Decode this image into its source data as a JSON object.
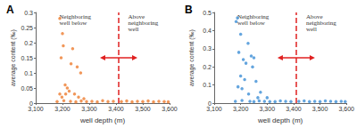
{
  "chart_data": [
    {
      "type": "scatter",
      "title": "A",
      "x_label": "well depth (m)",
      "y_label": "average content (‰)",
      "x": [
        3190,
        3200,
        3203,
        3195,
        3238,
        3232,
        3255,
        3268,
        3210,
        3218,
        3225,
        3212,
        3245,
        3190,
        3198,
        3260,
        3280,
        3180,
        3205,
        3230,
        3250,
        3270,
        3290,
        3310,
        3330,
        3350,
        3370,
        3390,
        3420,
        3440,
        3460,
        3480,
        3500,
        3520,
        3540,
        3560,
        3580,
        3595
      ],
      "values": [
        0.28,
        0.23,
        0.19,
        0.15,
        0.18,
        0.13,
        0.12,
        0.1,
        0.06,
        0.05,
        0.04,
        0.03,
        0.03,
        0.03,
        0.02,
        0.02,
        0.015,
        0.005,
        0.008,
        0.006,
        0.004,
        0.007,
        0.005,
        0.006,
        0.004,
        0.008,
        0.005,
        0.006,
        0.005,
        0.007,
        0.004,
        0.006,
        0.005,
        0.007,
        0.004,
        0.006,
        0.005,
        0.004
      ],
      "color": "#ed7d31",
      "xlim": [
        3100,
        3600
      ],
      "xticks": [
        3100,
        3200,
        3300,
        3400,
        3500,
        3600
      ],
      "ylim": [
        0,
        0.3
      ],
      "yticks": [
        0,
        0.05,
        0.1,
        0.15,
        0.2,
        0.25,
        0.3
      ],
      "vline": 3410,
      "annotations": [
        "Neighboring\nwell below",
        "Above\nneighboring\nwell"
      ],
      "grid": false
    },
    {
      "type": "scatter",
      "title": "B",
      "x_label": "well depth (m)",
      "y_label": "average content (‰)",
      "x": [
        3188,
        3183,
        3200,
        3228,
        3193,
        3240,
        3250,
        3210,
        3220,
        3245,
        3200,
        3215,
        3258,
        3190,
        3205,
        3275,
        3230,
        3300,
        3265,
        3180,
        3205,
        3235,
        3250,
        3270,
        3290,
        3310,
        3330,
        3350,
        3370,
        3390,
        3420,
        3440,
        3460,
        3480,
        3500,
        3520,
        3540,
        3560,
        3580,
        3595
      ],
      "values": [
        0.47,
        0.45,
        0.38,
        0.33,
        0.28,
        0.26,
        0.25,
        0.24,
        0.22,
        0.2,
        0.15,
        0.13,
        0.12,
        0.09,
        0.08,
        0.06,
        0.05,
        0.03,
        0.03,
        0.01,
        0.015,
        0.01,
        0.008,
        0.012,
        0.01,
        0.009,
        0.008,
        0.012,
        0.01,
        0.009,
        0.01,
        0.012,
        0.008,
        0.01,
        0.009,
        0.012,
        0.01,
        0.008,
        0.01,
        0.009
      ],
      "color": "#3d8fd6",
      "xlim": [
        3100,
        3600
      ],
      "xticks": [
        3100,
        3200,
        3300,
        3400,
        3500,
        3600
      ],
      "ylim": [
        0,
        0.5
      ],
      "yticks": [
        0,
        0.1,
        0.2,
        0.3,
        0.4,
        0.5
      ],
      "vline": 3410,
      "annotations": [
        "Neighboring\nwell below",
        "Above\nneighboring\nwell"
      ],
      "grid": false
    }
  ]
}
